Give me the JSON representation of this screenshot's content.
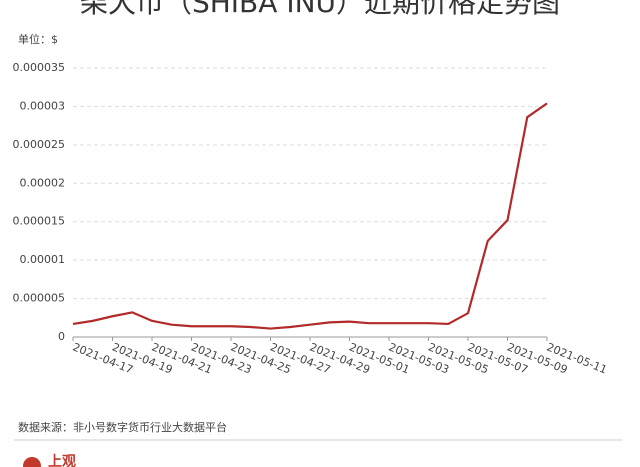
{
  "chart_data": {
    "type": "line",
    "title": "柴犬币（SHIBA INU）近期价格走势图",
    "unit_label": "单位：$",
    "source": "数据来源：非小号数字货币行业大数据平台",
    "logo": "上观",
    "categories": [
      "2021-04-17",
      null,
      "2021-04-19",
      null,
      "2021-04-21",
      null,
      "2021-04-23",
      null,
      "2021-04-25",
      null,
      "2021-04-27",
      null,
      "2021-04-29",
      null,
      "2021-05-01",
      null,
      "2021-05-03",
      null,
      "2021-05-05",
      null,
      "2021-05-07",
      null,
      "2021-05-09",
      null,
      "2021-05-11"
    ],
    "series": [
      {
        "name": "SHIBA INU",
        "color": "#b22a2a",
        "values": [
          1.7e-06,
          2.1e-06,
          2.7e-06,
          3.2e-06,
          2.1e-06,
          1.6e-06,
          1.4e-06,
          1.4e-06,
          1.4e-06,
          1.3e-06,
          1.1e-06,
          1.3e-06,
          1.6e-06,
          1.9e-06,
          2e-06,
          1.8e-06,
          1.8e-06,
          1.8e-06,
          1.8e-06,
          1.7e-06,
          3.1e-06,
          1.25e-05,
          1.52e-05,
          2.86e-05,
          3.04e-05
        ]
      }
    ],
    "ylim": [
      0,
      3.5e-05
    ],
    "yticks": [
      0,
      {
        "value": 5e-06,
        "label": "0.000005"
      },
      {
        "value": 1e-05,
        "label": "0.00001"
      },
      {
        "value": 1.5e-05,
        "label": "0.000015"
      },
      {
        "value": 2e-05,
        "label": "0.00002"
      },
      {
        "value": 2.5e-05,
        "label": "0.000025"
      },
      {
        "value": 3e-05,
        "label": "0.00003"
      },
      {
        "value": 3.5e-05,
        "label": "0.000035"
      }
    ],
    "grid": true
  }
}
